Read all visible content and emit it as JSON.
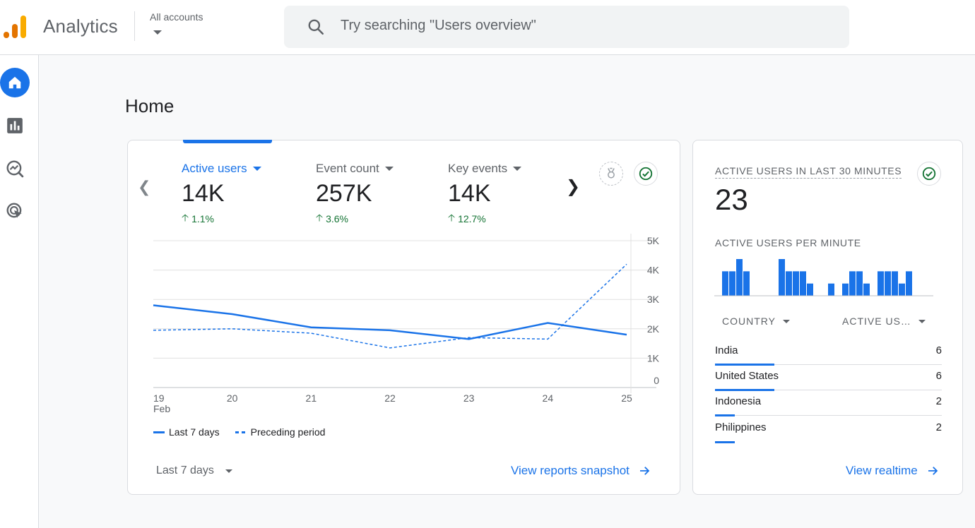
{
  "header": {
    "app_name": "Analytics",
    "account_label": "All accounts",
    "search_placeholder": "Try searching \"Users overview\""
  },
  "nav": {
    "items": [
      "home-icon",
      "reports-icon",
      "explore-icon",
      "advertising-icon"
    ]
  },
  "page": {
    "title": "Home"
  },
  "overview": {
    "metrics": [
      {
        "label": "Active users",
        "value": "14K",
        "delta": "1.1%",
        "active": true
      },
      {
        "label": "Event count",
        "value": "257K",
        "delta": "3.6%",
        "active": false
      },
      {
        "label": "Key events",
        "value": "14K",
        "delta": "12.7%",
        "active": false
      }
    ],
    "legend": {
      "current": "Last 7 days",
      "previous": "Preceding period"
    },
    "date_range": "Last 7 days",
    "link": "View reports snapshot"
  },
  "chart_data": {
    "type": "line",
    "x": [
      "19",
      "20",
      "21",
      "22",
      "23",
      "24",
      "25"
    ],
    "x_month_label": "Feb",
    "y_ticks": [
      "5K",
      "4K",
      "3K",
      "2K",
      "1K",
      "0"
    ],
    "ylim": [
      0,
      5000
    ],
    "series": [
      {
        "name": "Last 7 days",
        "style": "solid",
        "values": [
          2800,
          2500,
          2050,
          1950,
          1650,
          2200,
          1800
        ]
      },
      {
        "name": "Preceding period",
        "style": "dashed",
        "values": [
          1950,
          2000,
          1850,
          1350,
          1700,
          1650,
          4200
        ]
      }
    ]
  },
  "realtime": {
    "heading": "ACTIVE USERS IN LAST 30 MINUTES",
    "count": "23",
    "per_minute_label": "ACTIVE USERS PER MINUTE",
    "per_minute": [
      0,
      2,
      2,
      3,
      2,
      0,
      0,
      0,
      0,
      3,
      2,
      2,
      2,
      1,
      0,
      0,
      1,
      0,
      1,
      2,
      2,
      1,
      0,
      2,
      2,
      2,
      1,
      2,
      0,
      0
    ],
    "table_headers": {
      "country": "COUNTRY",
      "users": "ACTIVE US…"
    },
    "rows": [
      {
        "country": "India",
        "users": "6",
        "share": 1.0
      },
      {
        "country": "United States",
        "users": "6",
        "share": 1.0
      },
      {
        "country": "Indonesia",
        "users": "2",
        "share": 0.33
      },
      {
        "country": "Philippines",
        "users": "2",
        "share": 0.33
      }
    ],
    "link": "View realtime"
  },
  "colors": {
    "accent": "#1a73e8",
    "positive": "#137333",
    "logo_orange": "#f9ab00",
    "logo_dark_orange": "#e37400"
  }
}
